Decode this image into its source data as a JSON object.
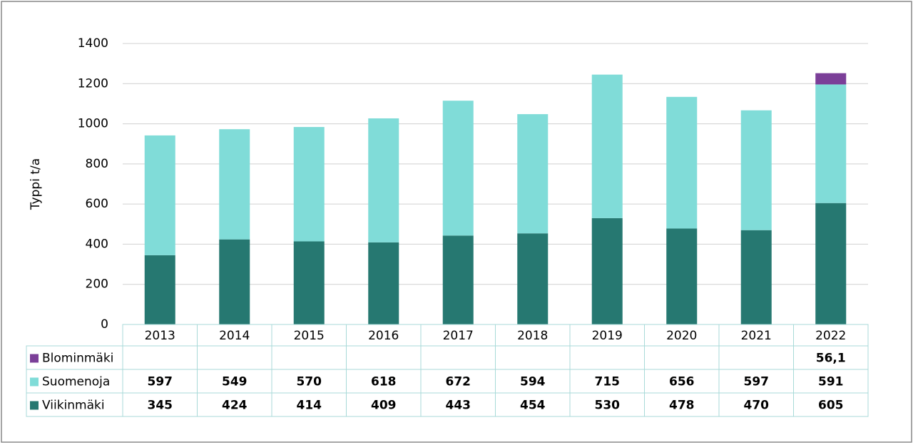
{
  "chart_data": {
    "type": "bar",
    "stacked": true,
    "y_label": "Typpi t/a",
    "categories": [
      "2013",
      "2014",
      "2015",
      "2016",
      "2017",
      "2018",
      "2019",
      "2020",
      "2021",
      "2022"
    ],
    "series": [
      {
        "name": "Viikinmäki",
        "color": "#267871",
        "values": [
          345,
          424,
          414,
          409,
          443,
          454,
          530,
          478,
          470,
          605
        ]
      },
      {
        "name": "Suomenoja",
        "color": "#80dcd8",
        "values": [
          597,
          549,
          570,
          618,
          672,
          594,
          715,
          656,
          597,
          591
        ]
      },
      {
        "name": "Blominmäki",
        "color": "#7b3f98",
        "values": [
          null,
          null,
          null,
          null,
          null,
          null,
          null,
          null,
          null,
          56.1
        ],
        "value_labels": [
          null,
          null,
          null,
          null,
          null,
          null,
          null,
          null,
          null,
          "56,1"
        ]
      }
    ],
    "ylim": [
      0,
      1400
    ],
    "yticks": [
      0,
      200,
      400,
      600,
      800,
      1000,
      1200,
      1400
    ],
    "grid": true
  }
}
